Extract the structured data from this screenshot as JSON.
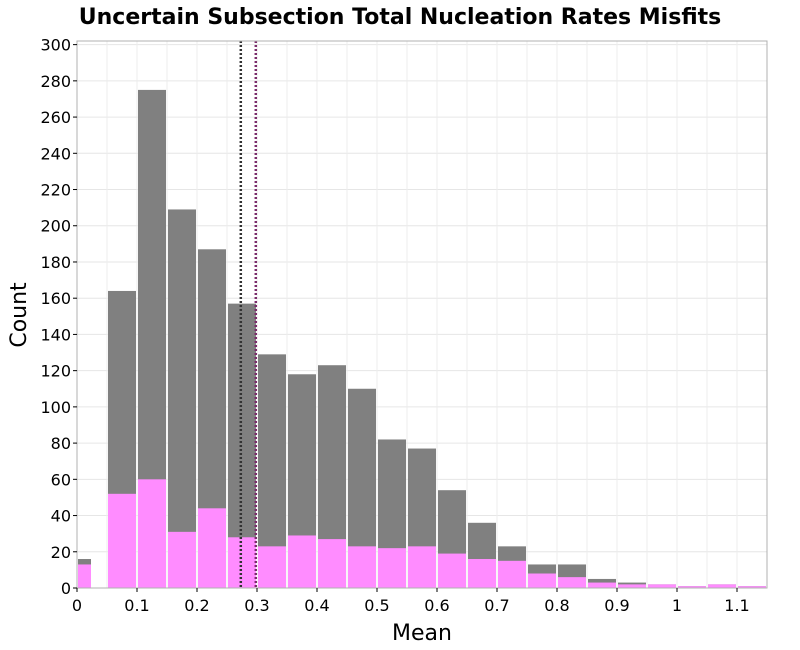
{
  "chart_data": {
    "type": "bar",
    "title": "Uncertain Subsection Total Nucleation Rates Misfits",
    "xlabel": "Mean",
    "ylabel": "Count",
    "xlim": [
      0,
      1.15
    ],
    "ylim": [
      0,
      302
    ],
    "bin_width": 0.05,
    "x_ticks": [
      0,
      0.1,
      0.2,
      0.3,
      0.4,
      0.5,
      0.6,
      0.7,
      0.8,
      0.9,
      1,
      1.1
    ],
    "x_tick_labels": [
      "0",
      "0.1",
      "0.2",
      "0.3",
      "0.4",
      "0.5",
      "0.6",
      "0.7",
      "0.8",
      "0.9",
      "1",
      "1.1"
    ],
    "y_ticks": [
      0,
      20,
      40,
      60,
      80,
      100,
      120,
      140,
      160,
      180,
      200,
      220,
      240,
      260,
      280,
      300
    ],
    "y_tick_labels": [
      "0",
      "20",
      "40",
      "60",
      "80",
      "100",
      "120",
      "140",
      "160",
      "180",
      "200",
      "220",
      "240",
      "260",
      "280",
      "300"
    ],
    "grid": true,
    "bin_centers": [
      0.0,
      0.075,
      0.125,
      0.175,
      0.225,
      0.275,
      0.325,
      0.375,
      0.425,
      0.475,
      0.525,
      0.575,
      0.625,
      0.675,
      0.725,
      0.775,
      0.825,
      0.875,
      0.925,
      0.975,
      1.025,
      1.075,
      1.125
    ],
    "series": [
      {
        "color": "#808080",
        "values": [
          16,
          164,
          275,
          209,
          187,
          157,
          129,
          118,
          123,
          110,
          82,
          77,
          54,
          36,
          23,
          13,
          13,
          5,
          3,
          2,
          1,
          2,
          1
        ]
      },
      {
        "color": "#ff8cff",
        "values": [
          13,
          52,
          60,
          31,
          44,
          28,
          23,
          29,
          27,
          23,
          22,
          23,
          19,
          16,
          15,
          8,
          6,
          3,
          2,
          2,
          1,
          2,
          1
        ]
      }
    ],
    "reference_lines": [
      {
        "x": 0.273,
        "color": "#333333"
      },
      {
        "x": 0.298,
        "color": "#7a2b6a"
      }
    ]
  }
}
